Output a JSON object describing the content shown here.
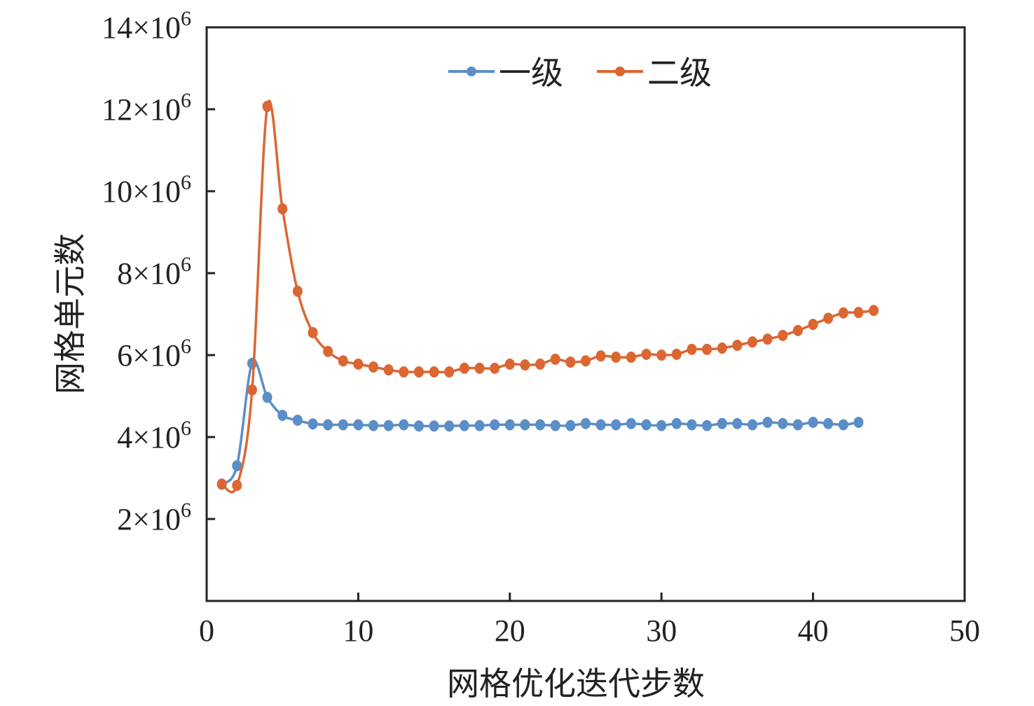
{
  "chart_data": {
    "type": "line",
    "title": "",
    "xlabel": "网格优化迭代步数",
    "ylabel": "网格单元数",
    "xlim": [
      0,
      50
    ],
    "ylim": [
      0,
      14000000
    ],
    "x_ticks": [
      "0",
      "10",
      "20",
      "30",
      "40",
      "50"
    ],
    "x_tick_values": [
      0,
      10,
      20,
      30,
      40,
      50
    ],
    "y_ticks": [
      {
        "value": 2000000,
        "mantissa": "2",
        "times": "×10",
        "exp": "6"
      },
      {
        "value": 4000000,
        "mantissa": "4",
        "times": "×10",
        "exp": "6"
      },
      {
        "value": 6000000,
        "mantissa": "6",
        "times": "×10",
        "exp": "6"
      },
      {
        "value": 8000000,
        "mantissa": "8",
        "times": "×10",
        "exp": "6"
      },
      {
        "value": 10000000,
        "mantissa": "10",
        "times": "×10",
        "exp": "6"
      },
      {
        "value": 12000000,
        "mantissa": "12",
        "times": "×10",
        "exp": "6"
      },
      {
        "value": 14000000,
        "mantissa": "14",
        "times": "×10",
        "exp": "6"
      }
    ],
    "grid": false,
    "legend_position": "top-center",
    "series": [
      {
        "name": "一级",
        "color": "#5b8ec6",
        "x": [
          1,
          2,
          3,
          4,
          5,
          6,
          7,
          8,
          9,
          10,
          11,
          12,
          13,
          14,
          15,
          16,
          17,
          18,
          19,
          20,
          21,
          22,
          23,
          24,
          25,
          26,
          27,
          28,
          29,
          30,
          31,
          32,
          33,
          34,
          35,
          36,
          37,
          38,
          39,
          40,
          41,
          42,
          43
        ],
        "values": [
          2.85,
          3.3,
          5.8,
          4.97,
          4.53,
          4.41,
          4.32,
          4.3,
          4.3,
          4.3,
          4.28,
          4.28,
          4.3,
          4.27,
          4.27,
          4.27,
          4.28,
          4.28,
          4.3,
          4.3,
          4.3,
          4.3,
          4.28,
          4.28,
          4.33,
          4.3,
          4.3,
          4.33,
          4.3,
          4.28,
          4.33,
          4.3,
          4.28,
          4.33,
          4.33,
          4.3,
          4.36,
          4.33,
          4.3,
          4.36,
          4.33,
          4.3,
          4.36
        ]
      },
      {
        "name": "二级",
        "color": "#dc6632",
        "x": [
          1,
          2,
          3,
          4,
          5,
          6,
          7,
          8,
          9,
          10,
          11,
          12,
          13,
          14,
          15,
          16,
          17,
          18,
          19,
          20,
          21,
          22,
          23,
          24,
          25,
          26,
          27,
          28,
          29,
          30,
          31,
          32,
          33,
          34,
          35,
          36,
          37,
          38,
          39,
          40,
          41,
          42,
          43,
          44
        ],
        "values": [
          2.85,
          2.82,
          5.15,
          12.07,
          9.57,
          7.56,
          6.55,
          6.09,
          5.86,
          5.78,
          5.71,
          5.64,
          5.59,
          5.59,
          5.59,
          5.59,
          5.68,
          5.68,
          5.68,
          5.78,
          5.76,
          5.78,
          5.9,
          5.83,
          5.86,
          5.98,
          5.95,
          5.95,
          6.02,
          6.0,
          6.02,
          6.14,
          6.14,
          6.17,
          6.24,
          6.32,
          6.39,
          6.48,
          6.6,
          6.75,
          6.9,
          7.03,
          7.04,
          7.09
        ]
      }
    ],
    "value_unit": "×10^6"
  }
}
